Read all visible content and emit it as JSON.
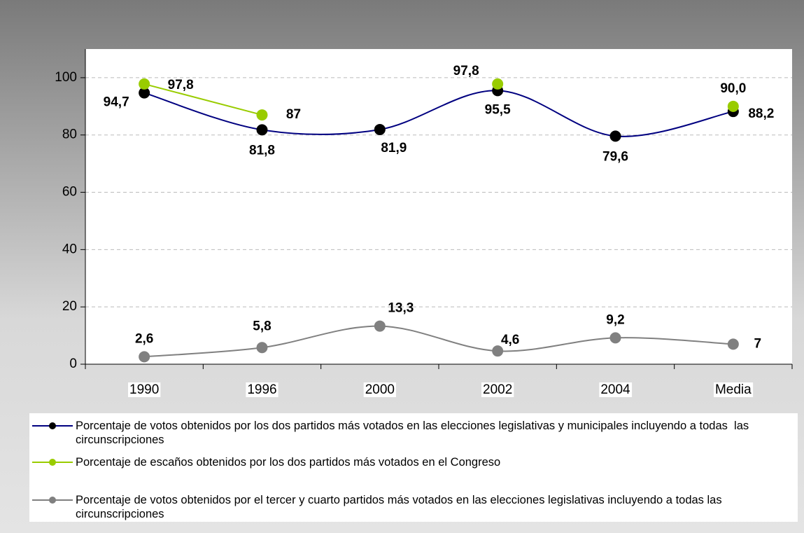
{
  "chart_data": {
    "type": "line",
    "categories": [
      "1990",
      "1996",
      "2000",
      "2002",
      "2004",
      "Media"
    ],
    "series": [
      {
        "name": "Porcentaje de votos obtenidos por los dos partidos más votados en las elecciones legislativas y municipales incluyendo a todas  las circunscripciones",
        "color": "#000080",
        "marker_color": "#000000",
        "smooth": true,
        "values": [
          94.7,
          81.8,
          81.9,
          95.5,
          79.6,
          88.2
        ],
        "value_labels": [
          "94,7",
          "81,8",
          "81,9",
          "95,5",
          "79,6",
          "88,2"
        ]
      },
      {
        "name": "Porcentaje de escaños obtenidos por los dos partidos más votados en el Congreso",
        "color": "#99cc00",
        "marker_color": "#99cc00",
        "smooth": false,
        "values": [
          97.8,
          87,
          null,
          97.8,
          null,
          90.0
        ],
        "value_labels": [
          "97,8",
          "87",
          null,
          "97,8",
          null,
          "90,0"
        ]
      },
      {
        "name": "Porcentaje de votos obtenidos por el tercer y cuarto partidos más votados en las elecciones legislativas incluyendo a todas las circunscripciones",
        "color": "#808080",
        "marker_color": "#808080",
        "smooth": true,
        "values": [
          2.6,
          5.8,
          13.3,
          4.6,
          9.2,
          7
        ],
        "value_labels": [
          "2,6",
          "5,8",
          "13,3",
          "4,6",
          "9,2",
          "7"
        ]
      }
    ],
    "ylim": [
      0,
      110
    ],
    "yticks": [
      0,
      20,
      40,
      60,
      80,
      100
    ],
    "grid": true
  }
}
